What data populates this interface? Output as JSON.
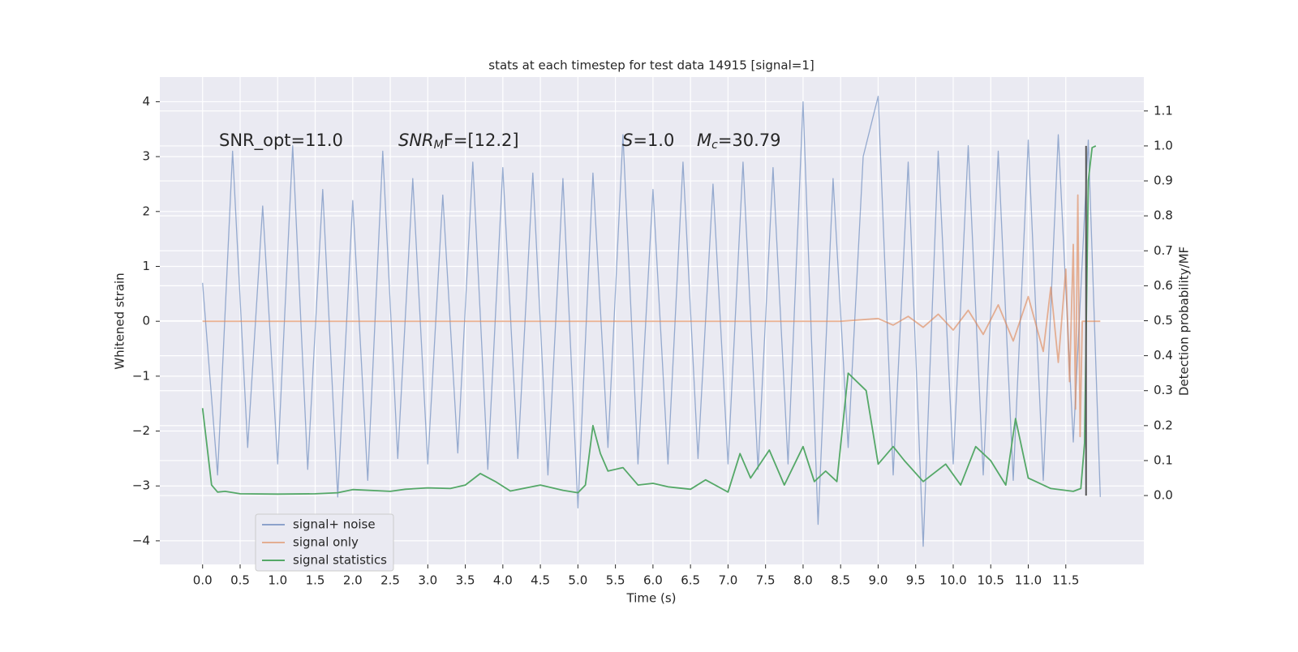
{
  "chart_data": {
    "type": "line",
    "title": "stats at each timestep for test data 14915 [signal=1]",
    "xlabel": "Time (s)",
    "ylabel": "Whitened strain",
    "y2label": "Detection probability/MF",
    "annotations": [
      {
        "main": "SNR_opt=11.0"
      },
      {
        "main": "SNR",
        "sub": "M",
        "rest": "F=[12.2]"
      },
      {
        "main": "S",
        "rest": "=1.0"
      },
      {
        "main": "M",
        "sub": "c",
        "rest": "=30.79"
      }
    ],
    "xlim": [
      -0.57,
      12.54
    ],
    "xticks": [
      {
        "value": 0,
        "label": "0.0"
      },
      0.5,
      {
        "value": 1,
        "label": "1.0"
      },
      1.5,
      {
        "value": 2,
        "label": "2.0"
      },
      2.5,
      {
        "value": 3,
        "label": "3.0"
      },
      3.5,
      {
        "value": 4,
        "label": "4.0"
      },
      4.5,
      {
        "value": 5,
        "label": "5.0"
      },
      5.5,
      {
        "value": 6,
        "label": "6.0"
      },
      6.5,
      {
        "value": 7,
        "label": "7.0"
      },
      7.5,
      {
        "value": 8,
        "label": "8.0"
      },
      8.5,
      {
        "value": 9,
        "label": "9.0"
      },
      9.5,
      {
        "value": 10,
        "label": "10.0"
      },
      10.5,
      {
        "value": 11,
        "label": "11.0"
      },
      11.5
    ],
    "ylim": [
      -4.43,
      4.45
    ],
    "yticks": [
      {
        "value": -4,
        "label": "−4"
      },
      {
        "value": -3,
        "label": "−3"
      },
      {
        "value": -2,
        "label": "−2"
      },
      {
        "value": -1,
        "label": "−1"
      },
      0,
      1,
      2,
      3,
      4
    ],
    "y2lim": [
      -0.197,
      1.197
    ],
    "y2ticks": [
      {
        "value": 0,
        "label": "0.0"
      },
      0.1,
      0.2,
      0.3,
      0.4,
      0.5,
      0.6,
      0.7,
      0.8,
      0.9,
      {
        "value": 1,
        "label": "1.0"
      },
      1.1
    ],
    "grid": true,
    "legend": "lower left",
    "series": [
      {
        "name": "signal+ noise",
        "color": "#4c72b0",
        "x": [
          0,
          0.2,
          0.4,
          0.6,
          0.8,
          1,
          1.2,
          1.4,
          1.6,
          1.8,
          2,
          2.2,
          2.4,
          2.6,
          2.8,
          3,
          3.2,
          3.4,
          3.6,
          3.8,
          4,
          4.2,
          4.4,
          4.6,
          4.8,
          5,
          5.2,
          5.4,
          5.6,
          5.8,
          6,
          6.2,
          6.4,
          6.6,
          6.8,
          7,
          7.2,
          7.4,
          7.6,
          7.8,
          8,
          8.2,
          8.4,
          8.6,
          8.8,
          9,
          9.2,
          9.4,
          9.6,
          9.8,
          10,
          10.2,
          10.4,
          10.6,
          10.8,
          11,
          11.2,
          11.4,
          11.6,
          11.8,
          11.96
        ],
        "values": [
          0.7,
          -2.8,
          3.1,
          -2.3,
          2.1,
          -2.6,
          3.2,
          -2.7,
          2.4,
          -3.2,
          2.2,
          -2.9,
          3.1,
          -2.5,
          2.6,
          -2.6,
          2.3,
          -2.4,
          2.9,
          -2.7,
          2.8,
          -2.5,
          2.7,
          -2.8,
          2.6,
          -3.4,
          2.7,
          -2.3,
          3.4,
          -2.6,
          2.4,
          -2.6,
          2.9,
          -2.5,
          2.5,
          -2.6,
          2.9,
          -2.7,
          2.8,
          -2.6,
          4.0,
          -3.7,
          2.6,
          -2.3,
          3.0,
          4.1,
          -2.8,
          2.9,
          -4.1,
          3.1,
          -2.6,
          3.2,
          -2.8,
          3.1,
          -2.9,
          3.3,
          -2.9,
          3.4,
          -2.2,
          3.3,
          -3.2
        ]
      },
      {
        "name": "signal only",
        "color": "#dd8452",
        "x": [
          0,
          8.5,
          9,
          9.2,
          9.4,
          9.6,
          9.8,
          10,
          10.2,
          10.4,
          10.6,
          10.8,
          11,
          11.2,
          11.3,
          11.4,
          11.5,
          11.55,
          11.6,
          11.63,
          11.66,
          11.69,
          11.72,
          11.96
        ],
        "values": [
          0,
          0,
          0.05,
          -0.07,
          0.09,
          -0.11,
          0.13,
          -0.16,
          0.2,
          -0.24,
          0.3,
          -0.36,
          0.45,
          -0.55,
          0.62,
          -0.75,
          0.95,
          -1.1,
          1.4,
          -1.6,
          2.3,
          -2.1,
          0,
          0
        ]
      },
      {
        "name": "signal statistics",
        "color": "#55a868",
        "axis": "y2",
        "x": [
          0,
          0.12,
          0.2,
          0.3,
          0.5,
          1,
          1.5,
          1.8,
          2,
          2.5,
          2.7,
          3,
          3.3,
          3.5,
          3.7,
          3.9,
          4.1,
          4.5,
          4.8,
          5,
          5.1,
          5.2,
          5.3,
          5.4,
          5.6,
          5.8,
          6,
          6.2,
          6.5,
          6.7,
          7,
          7.16,
          7.3,
          7.55,
          7.75,
          8,
          8.15,
          8.3,
          8.45,
          8.6,
          8.84,
          9,
          9.2,
          9.35,
          9.6,
          9.9,
          10.1,
          10.3,
          10.5,
          10.7,
          10.83,
          11,
          11.3,
          11.6,
          11.7,
          11.75,
          11.8,
          11.85,
          11.9
        ],
        "values": [
          0.25,
          0.03,
          0.01,
          0.012,
          0.005,
          0.004,
          0.005,
          0.008,
          0.017,
          0.012,
          0.018,
          0.022,
          0.02,
          0.03,
          0.063,
          0.04,
          0.013,
          0.03,
          0.015,
          0.008,
          0.03,
          0.2,
          0.12,
          0.07,
          0.08,
          0.03,
          0.035,
          0.025,
          0.018,
          0.045,
          0.01,
          0.12,
          0.05,
          0.13,
          0.03,
          0.14,
          0.04,
          0.07,
          0.04,
          0.35,
          0.3,
          0.09,
          0.14,
          0.1,
          0.04,
          0.09,
          0.03,
          0.14,
          0.1,
          0.03,
          0.22,
          0.05,
          0.02,
          0.012,
          0.02,
          0.15,
          0.9,
          0.995,
          1.0
        ]
      }
    ],
    "vline": {
      "x": 11.77,
      "y2": [
        0,
        1
      ],
      "color": "#555555"
    }
  }
}
